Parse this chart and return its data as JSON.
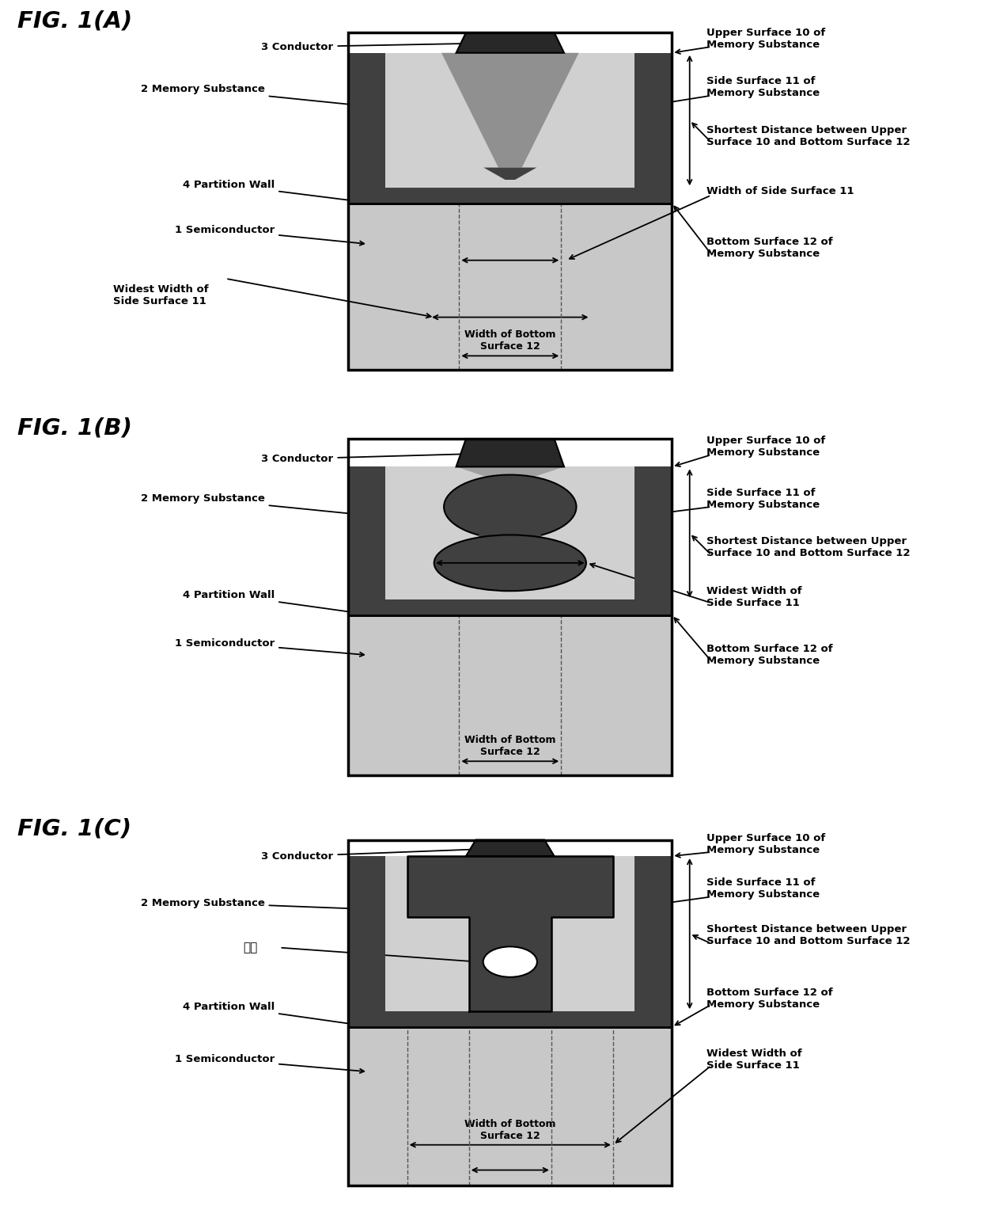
{
  "bg_color": "#ffffff",
  "fig_width": 12.4,
  "fig_height": 15.33,
  "dpi": 100,
  "panels": [
    "FIG. 1(A)",
    "FIG. 1(B)",
    "FIG. 1(C)"
  ],
  "colors": {
    "semiconductor": "#c8c8c8",
    "memory_outer": "#888888",
    "memory_dark": "#404040",
    "memory_inner_light": "#d0d0d0",
    "conductor": "#282828",
    "void_fill": "#c0c0c0",
    "white": "#ffffff",
    "black": "#000000"
  }
}
